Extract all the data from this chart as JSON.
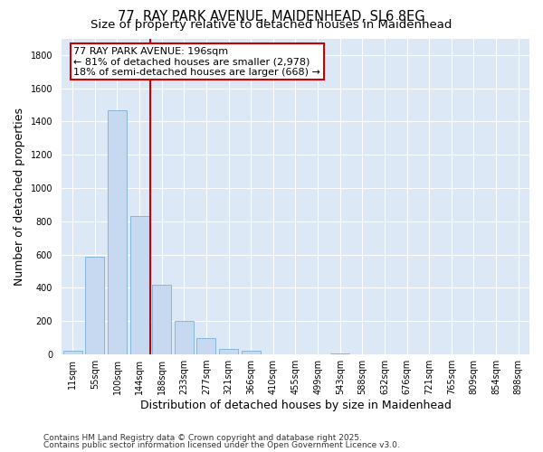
{
  "title_line1": "77, RAY PARK AVENUE, MAIDENHEAD, SL6 8EG",
  "title_line2": "Size of property relative to detached houses in Maidenhead",
  "xlabel": "Distribution of detached houses by size in Maidenhead",
  "ylabel": "Number of detached properties",
  "bar_color": "#c6d9f0",
  "bar_edge_color": "#7bafd4",
  "background_color": "#dce8f5",
  "grid_color": "#ffffff",
  "fig_background": "#ffffff",
  "categories": [
    "11sqm",
    "55sqm",
    "100sqm",
    "144sqm",
    "188sqm",
    "233sqm",
    "277sqm",
    "321sqm",
    "366sqm",
    "410sqm",
    "455sqm",
    "499sqm",
    "543sqm",
    "588sqm",
    "632sqm",
    "676sqm",
    "721sqm",
    "765sqm",
    "809sqm",
    "854sqm",
    "898sqm"
  ],
  "values": [
    20,
    590,
    1470,
    830,
    420,
    200,
    100,
    35,
    20,
    0,
    0,
    0,
    8,
    0,
    0,
    0,
    0,
    0,
    0,
    0,
    0
  ],
  "vline_index": 4,
  "vline_color": "#cc0000",
  "annotation_text": "77 RAY PARK AVENUE: 196sqm\n← 81% of detached houses are smaller (2,978)\n18% of semi-detached houses are larger (668) →",
  "ylim": [
    0,
    1900
  ],
  "yticks": [
    0,
    200,
    400,
    600,
    800,
    1000,
    1200,
    1400,
    1600,
    1800
  ],
  "footer_line1": "Contains HM Land Registry data © Crown copyright and database right 2025.",
  "footer_line2": "Contains public sector information licensed under the Open Government Licence v3.0.",
  "title_fontsize": 10.5,
  "subtitle_fontsize": 9.5,
  "axis_label_fontsize": 9,
  "tick_fontsize": 7,
  "annotation_fontsize": 8,
  "footer_fontsize": 6.5
}
